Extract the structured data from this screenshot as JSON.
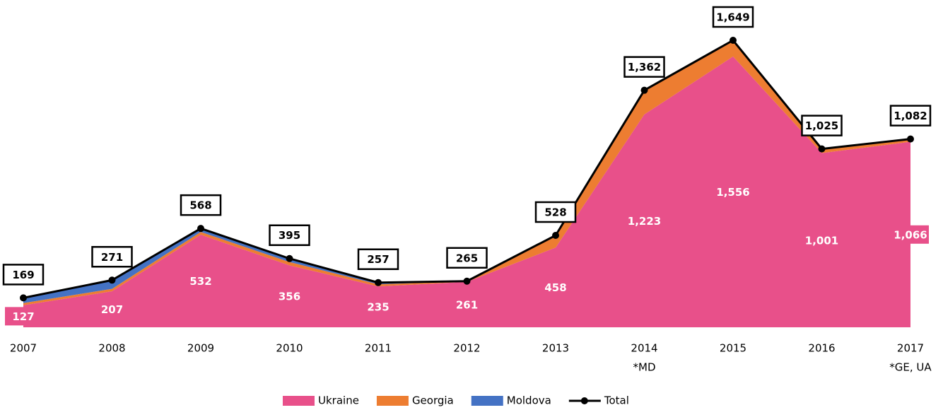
{
  "chart_data": {
    "type": "stacked-area",
    "categories": [
      "2007",
      "2008",
      "2009",
      "2010",
      "2011",
      "2012",
      "2013",
      "2014",
      "2015",
      "2016",
      "2017"
    ],
    "category_notes": [
      null,
      null,
      null,
      null,
      null,
      null,
      null,
      "*MD",
      null,
      null,
      "*GE, UA"
    ],
    "series": [
      {
        "name": "Ukraine",
        "color": "#e8508a",
        "values": [
          127,
          207,
          532,
          356,
          235,
          261,
          458,
          1223,
          1556,
          1001,
          1066
        ],
        "value_labels": [
          "127",
          "207",
          "532",
          "356",
          "235",
          "261",
          "458",
          "1,223",
          "1,556",
          "1,001",
          "1,066"
        ]
      },
      {
        "name": "Georgia",
        "color": "#ed7d31",
        "values": [
          12,
          14,
          16,
          19,
          12,
          3,
          68,
          139,
          92,
          22,
          16
        ]
      },
      {
        "name": "Moldova",
        "color": "#4472c4",
        "values": [
          30,
          50,
          20,
          20,
          10,
          1,
          2,
          0,
          1,
          2,
          0
        ]
      }
    ],
    "total": {
      "name": "Total",
      "color": "#000000",
      "values": [
        169,
        271,
        568,
        395,
        257,
        265,
        528,
        1362,
        1649,
        1025,
        1082
      ],
      "value_labels": [
        "169",
        "271",
        "568",
        "395",
        "257",
        "265",
        "528",
        "1,362",
        "1,649",
        "1,025",
        "1,082"
      ]
    }
  }
}
